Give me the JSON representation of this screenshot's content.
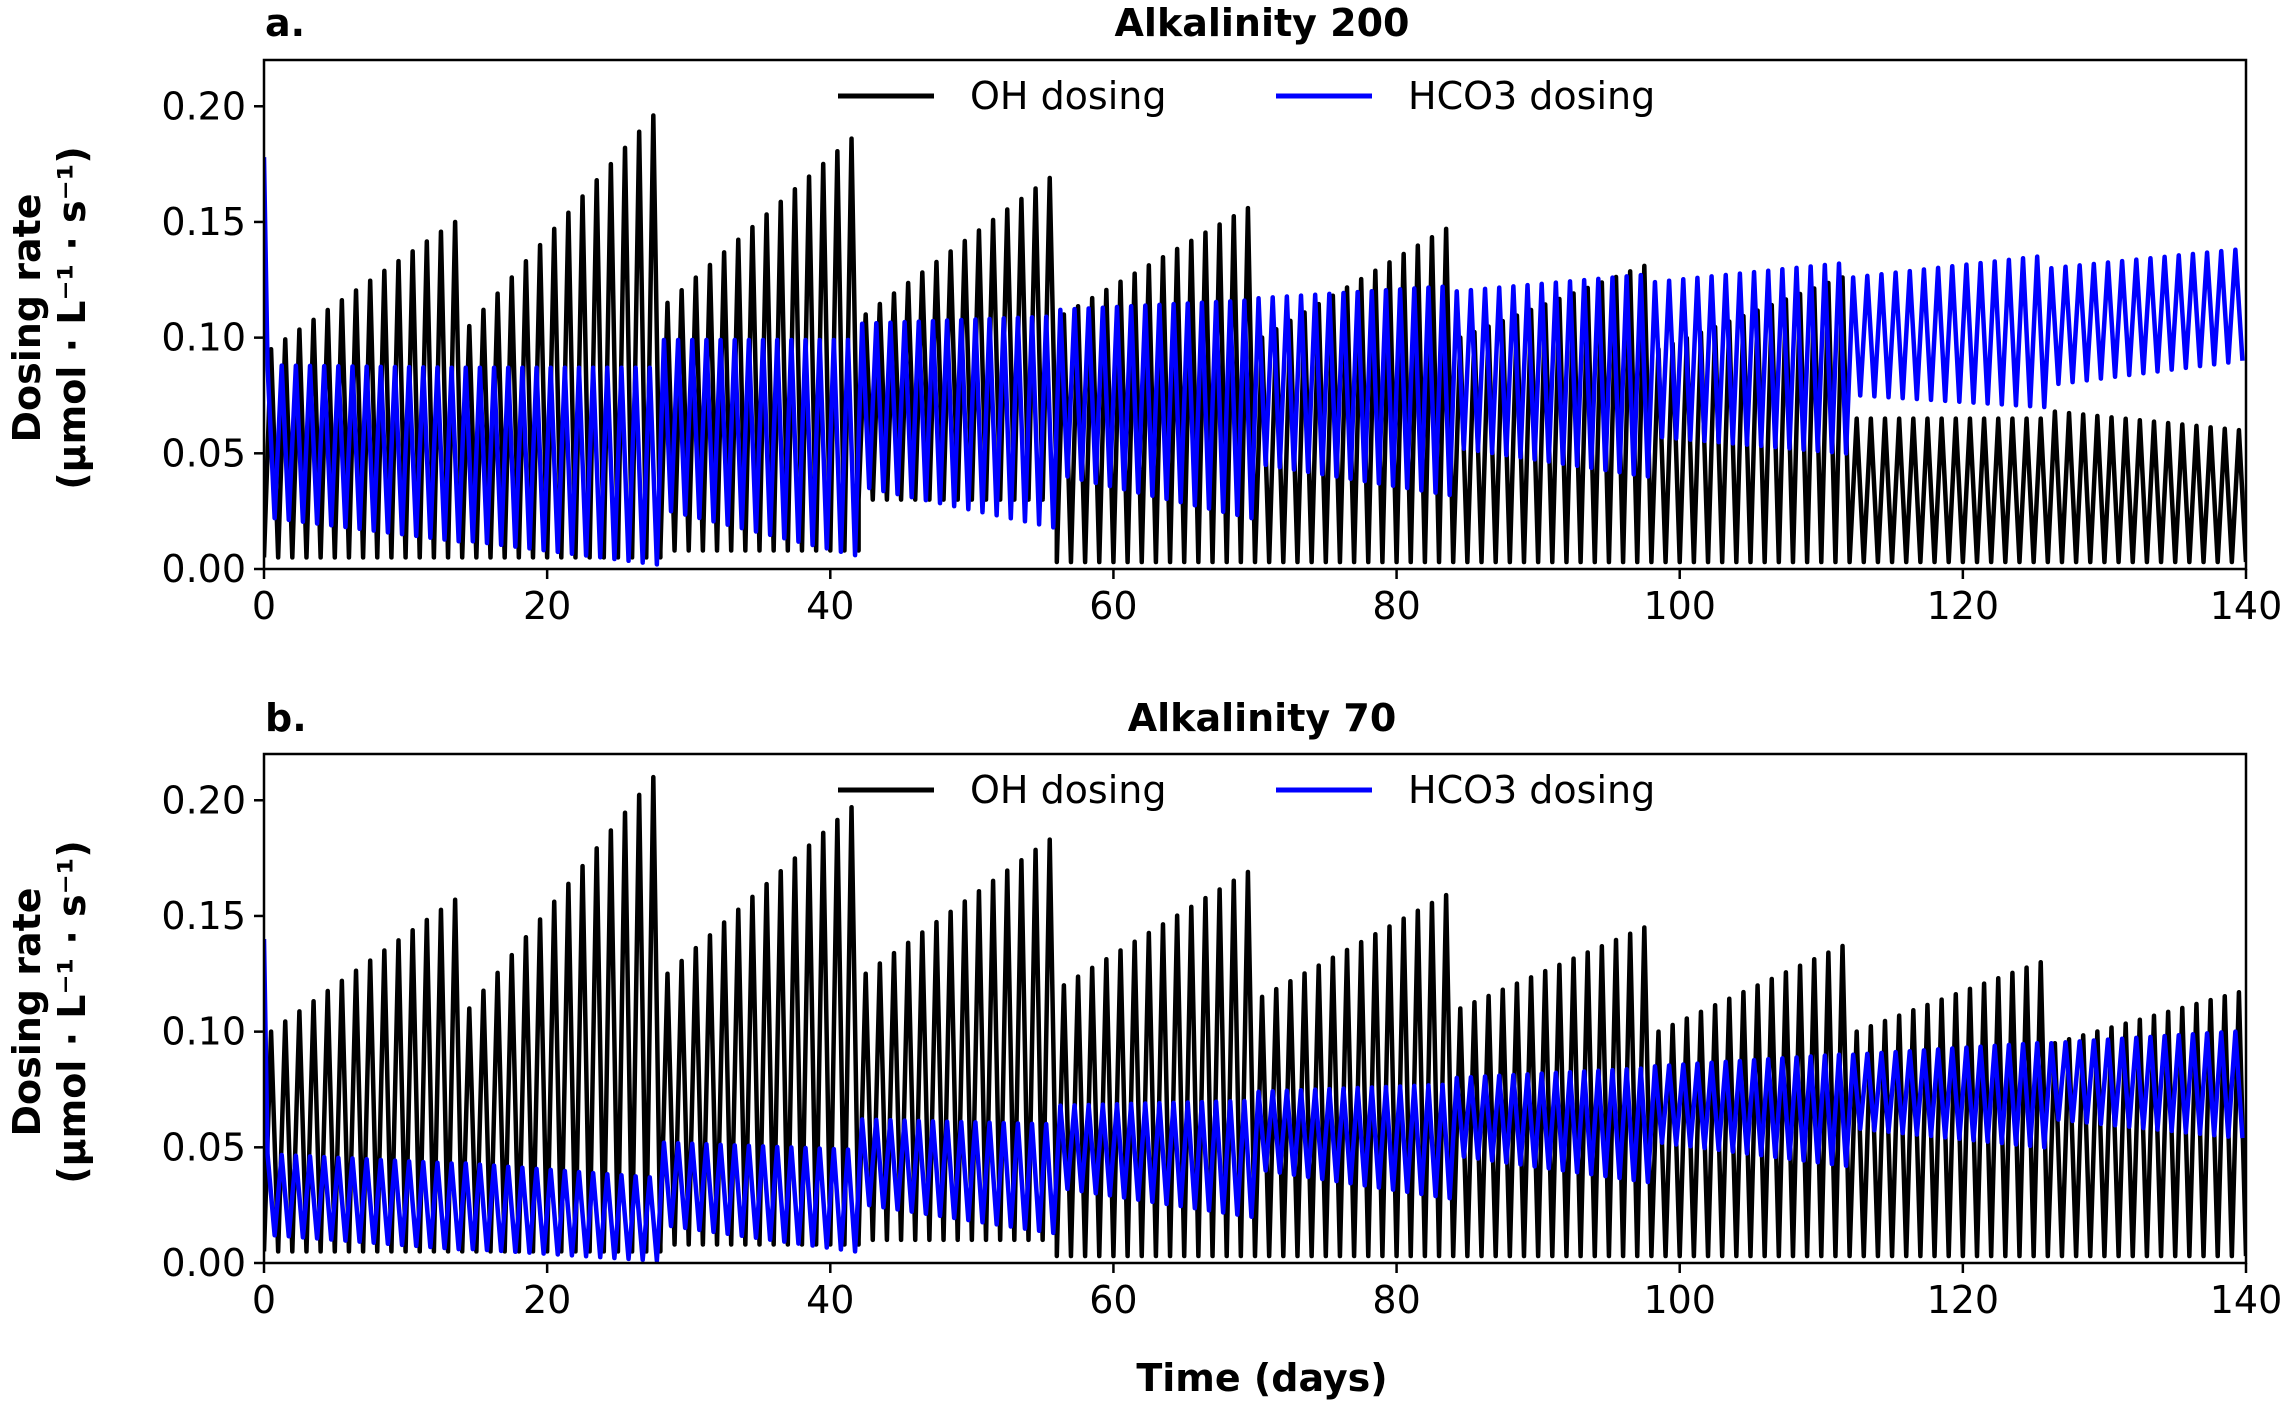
{
  "chart_data": [
    {
      "type": "line",
      "panel_label": "a.",
      "title": "Alkalinity 200",
      "xlabel": "",
      "ylabel_line1": "Dosing rate",
      "ylabel_line2": "(µmol · L⁻¹ · s⁻¹)",
      "xlim": [
        0,
        140
      ],
      "ylim": [
        0,
        0.22
      ],
      "xticks": [
        0,
        20,
        40,
        60,
        80,
        100,
        120,
        140
      ],
      "xtick_labels": [
        "0",
        "20",
        "40",
        "60",
        "80",
        "100",
        "120",
        "140"
      ],
      "yticks": [
        0,
        0.05,
        0.1,
        0.15,
        0.2
      ],
      "ytick_labels": [
        "0.00",
        "0.05",
        "0.10",
        "0.15",
        "0.20"
      ],
      "grid": false,
      "legend_position": "top-center",
      "cycle_period_days": 14,
      "oscillation_period_days": 1,
      "series": [
        {
          "name": "OH dosing",
          "color": "#000000",
          "cycles": [
            {
              "start": 0,
              "end": 14,
              "peak_start": 0.095,
              "peak_end": 0.15,
              "trough": 0.005
            },
            {
              "start": 14,
              "end": 28,
              "peak_start": 0.105,
              "peak_end": 0.196,
              "trough": 0.005
            },
            {
              "start": 28,
              "end": 42,
              "peak_start": 0.115,
              "peak_end": 0.186,
              "trough": 0.008
            },
            {
              "start": 42,
              "end": 56,
              "peak_start": 0.11,
              "peak_end": 0.169,
              "trough": 0.03
            },
            {
              "start": 56,
              "end": 70,
              "peak_start": 0.11,
              "peak_end": 0.156,
              "trough": 0.003
            },
            {
              "start": 70,
              "end": 84,
              "peak_start": 0.1,
              "peak_end": 0.147,
              "trough": 0.003
            },
            {
              "start": 84,
              "end": 98,
              "peak_start": 0.1,
              "peak_end": 0.131,
              "trough": 0.003
            },
            {
              "start": 98,
              "end": 112,
              "peak_start": 0.095,
              "peak_end": 0.126,
              "trough": 0.003
            },
            {
              "start": 112,
              "end": 126,
              "peak_start": 0.065,
              "peak_end": 0.065,
              "trough": 0.003
            },
            {
              "start": 126,
              "end": 140,
              "peak_start": 0.068,
              "peak_end": 0.06,
              "trough": 0.003
            }
          ]
        },
        {
          "name": "HCO3 dosing",
          "color": "#0000ff",
          "spike": 0.178,
          "cycles": [
            {
              "start": 0,
              "end": 14,
              "peak_start": 0.088,
              "peak_end": 0.087,
              "trough_start": 0.022,
              "trough_end": 0.012
            },
            {
              "start": 14,
              "end": 28,
              "peak_start": 0.087,
              "peak_end": 0.087,
              "trough_start": 0.012,
              "trough_end": 0.002
            },
            {
              "start": 28,
              "end": 42,
              "peak_start": 0.099,
              "peak_end": 0.099,
              "trough_start": 0.025,
              "trough_end": 0.006
            },
            {
              "start": 42,
              "end": 56,
              "peak_start": 0.106,
              "peak_end": 0.109,
              "trough_start": 0.035,
              "trough_end": 0.018
            },
            {
              "start": 56,
              "end": 70,
              "peak_start": 0.112,
              "peak_end": 0.116,
              "trough_start": 0.04,
              "trough_end": 0.022
            },
            {
              "start": 70,
              "end": 84,
              "peak_start": 0.117,
              "peak_end": 0.122,
              "trough_start": 0.045,
              "trough_end": 0.032
            },
            {
              "start": 84,
              "end": 98,
              "peak_start": 0.12,
              "peak_end": 0.127,
              "trough_start": 0.052,
              "trough_end": 0.04
            },
            {
              "start": 98,
              "end": 112,
              "peak_start": 0.124,
              "peak_end": 0.132,
              "trough_start": 0.057,
              "trough_end": 0.05
            },
            {
              "start": 112,
              "end": 126,
              "peak_start": 0.126,
              "peak_end": 0.135,
              "trough_start": 0.075,
              "trough_end": 0.07
            },
            {
              "start": 126,
              "end": 140,
              "peak_start": 0.13,
              "peak_end": 0.138,
              "trough_start": 0.08,
              "trough_end": 0.09
            }
          ]
        }
      ]
    },
    {
      "type": "line",
      "panel_label": "b.",
      "title": "Alkalinity 70",
      "xlabel": "Time (days)",
      "ylabel_line1": "Dosing rate",
      "ylabel_line2": "(µmol · L⁻¹ · s⁻¹)",
      "xlim": [
        0,
        140
      ],
      "ylim": [
        0,
        0.22
      ],
      "xticks": [
        0,
        20,
        40,
        60,
        80,
        100,
        120,
        140
      ],
      "xtick_labels": [
        "0",
        "20",
        "40",
        "60",
        "80",
        "100",
        "120",
        "140"
      ],
      "yticks": [
        0,
        0.05,
        0.1,
        0.15,
        0.2
      ],
      "ytick_labels": [
        "0.00",
        "0.05",
        "0.10",
        "0.15",
        "0.20"
      ],
      "grid": false,
      "legend_position": "top-center",
      "cycle_period_days": 14,
      "oscillation_period_days": 1,
      "series": [
        {
          "name": "OH dosing",
          "color": "#000000",
          "cycles": [
            {
              "start": 0,
              "end": 14,
              "peak_start": 0.1,
              "peak_end": 0.157,
              "trough": 0.005
            },
            {
              "start": 14,
              "end": 28,
              "peak_start": 0.11,
              "peak_end": 0.21,
              "trough": 0.005
            },
            {
              "start": 28,
              "end": 42,
              "peak_start": 0.125,
              "peak_end": 0.197,
              "trough": 0.008
            },
            {
              "start": 42,
              "end": 56,
              "peak_start": 0.125,
              "peak_end": 0.183,
              "trough": 0.01
            },
            {
              "start": 56,
              "end": 70,
              "peak_start": 0.12,
              "peak_end": 0.169,
              "trough": 0.003
            },
            {
              "start": 70,
              "end": 84,
              "peak_start": 0.115,
              "peak_end": 0.159,
              "trough": 0.003
            },
            {
              "start": 84,
              "end": 98,
              "peak_start": 0.11,
              "peak_end": 0.145,
              "trough": 0.003
            },
            {
              "start": 98,
              "end": 112,
              "peak_start": 0.1,
              "peak_end": 0.137,
              "trough": 0.003
            },
            {
              "start": 112,
              "end": 126,
              "peak_start": 0.1,
              "peak_end": 0.13,
              "trough": 0.003
            },
            {
              "start": 126,
              "end": 140,
              "peak_start": 0.095,
              "peak_end": 0.117,
              "trough": 0.003
            }
          ]
        },
        {
          "name": "HCO3 dosing",
          "color": "#0000ff",
          "spike": 0.14,
          "cycles": [
            {
              "start": 0,
              "end": 14,
              "peak_start": 0.047,
              "peak_end": 0.043,
              "trough_start": 0.012,
              "trough_end": 0.006
            },
            {
              "start": 14,
              "end": 28,
              "peak_start": 0.043,
              "peak_end": 0.037,
              "trough_start": 0.006,
              "trough_end": 0.001
            },
            {
              "start": 28,
              "end": 42,
              "peak_start": 0.052,
              "peak_end": 0.049,
              "trough_start": 0.016,
              "trough_end": 0.005
            },
            {
              "start": 42,
              "end": 56,
              "peak_start": 0.062,
              "peak_end": 0.06,
              "trough_start": 0.025,
              "trough_end": 0.013
            },
            {
              "start": 56,
              "end": 70,
              "peak_start": 0.068,
              "peak_end": 0.07,
              "trough_start": 0.032,
              "trough_end": 0.02
            },
            {
              "start": 70,
              "end": 84,
              "peak_start": 0.074,
              "peak_end": 0.077,
              "trough_start": 0.04,
              "trough_end": 0.028
            },
            {
              "start": 84,
              "end": 98,
              "peak_start": 0.08,
              "peak_end": 0.084,
              "trough_start": 0.046,
              "trough_end": 0.035
            },
            {
              "start": 98,
              "end": 112,
              "peak_start": 0.085,
              "peak_end": 0.09,
              "trough_start": 0.052,
              "trough_end": 0.042
            },
            {
              "start": 112,
              "end": 126,
              "peak_start": 0.09,
              "peak_end": 0.095,
              "trough_start": 0.058,
              "trough_end": 0.05
            },
            {
              "start": 126,
              "end": 140,
              "peak_start": 0.095,
              "peak_end": 0.1,
              "trough_start": 0.062,
              "trough_end": 0.054
            }
          ]
        }
      ]
    }
  ]
}
